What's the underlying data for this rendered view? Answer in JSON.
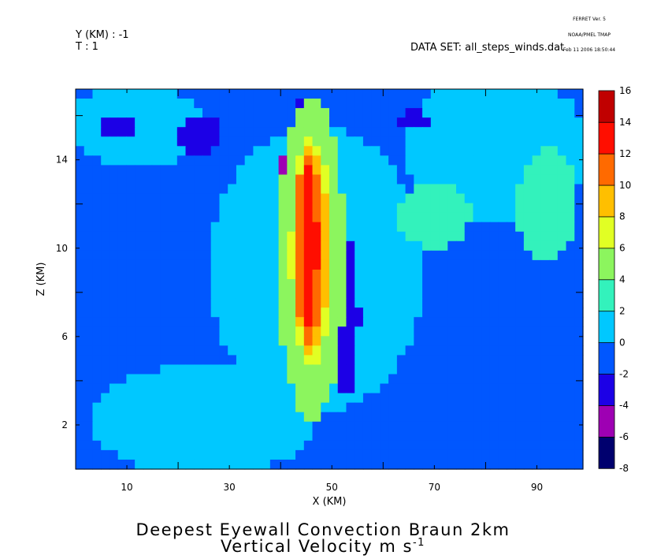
{
  "header": {
    "y_slice": "Y (KM) : -1",
    "t_slice": "T : 1",
    "dataset": "DATA SET: all_steps_winds.dat",
    "stamp": [
      "FERRET Ver. 5",
      "NOAA/PMEL TMAP",
      "Feb 11 2006 18:50:44"
    ]
  },
  "chart_data": {
    "type": "heatmap",
    "title": "Deepest Eyewall Convection Braun 2km",
    "subtitle_base": "Vertical Velocity m s",
    "subtitle_exp": "-1",
    "xlabel": "X (KM)",
    "ylabel": "Z (KM)",
    "xlim": [
      0,
      99
    ],
    "ylim": [
      0,
      17.2
    ],
    "x_ticks": [
      10,
      30,
      50,
      70,
      90
    ],
    "y_ticks": [
      2,
      6,
      10,
      14
    ],
    "colorbar": {
      "levels": [
        -8,
        -6,
        -4,
        -2,
        0,
        2,
        4,
        6,
        8,
        10,
        12,
        14,
        16
      ],
      "colors": [
        "#00006e",
        "#9e00b3",
        "#1c00e6",
        "#0057ff",
        "#00c8ff",
        "#33f2bc",
        "#8cf55e",
        "#e1ff24",
        "#ffbf00",
        "#ff6a00",
        "#ff0e00",
        "#c00000"
      ]
    },
    "background_value": -1,
    "features": [
      {
        "type": "ellipse",
        "x": 47,
        "z": 9.0,
        "rx": 21,
        "rz": 6.5,
        "value": 1
      },
      {
        "type": "ellipse",
        "x": 82,
        "z": 14.5,
        "rx": 18,
        "rz": 3.5,
        "value": 1
      },
      {
        "type": "ellipse",
        "x": 25,
        "z": 2.2,
        "rx": 22,
        "rz": 2.5,
        "value": 1
      },
      {
        "type": "ellipse",
        "x": 12,
        "z": 15.5,
        "rx": 14,
        "rz": 1.8,
        "value": 1
      },
      {
        "type": "ellipse",
        "x": 92,
        "z": 12.0,
        "rx": 6,
        "rz": 2.5,
        "value": 3
      },
      {
        "type": "ellipse",
        "x": 70,
        "z": 11.5,
        "rx": 7,
        "rz": 1.5,
        "value": 3
      },
      {
        "type": "ellipse",
        "x": 44.5,
        "z": 11.5,
        "rx": 2.5,
        "rz": 5.5,
        "value": -4
      },
      {
        "type": "ellipse",
        "x": 41,
        "z": 13.0,
        "rx": 1.5,
        "rz": 1.1,
        "value": -5
      },
      {
        "type": "ellipse",
        "x": 52.5,
        "z": 7.0,
        "rx": 2.8,
        "rz": 3.8,
        "value": -3
      },
      {
        "type": "ellipse",
        "x": 52.5,
        "z": 7.2,
        "rx": 1.3,
        "rz": 1.6,
        "value": -3.5
      },
      {
        "type": "ellipse",
        "x": 8,
        "z": 15.5,
        "rx": 3,
        "rz": 0.6,
        "value": -3
      },
      {
        "type": "ellipse",
        "x": 24,
        "z": 15.2,
        "rx": 4,
        "rz": 0.9,
        "value": -3
      },
      {
        "type": "ellipse",
        "x": 66,
        "z": 15.8,
        "rx": 3,
        "rz": 0.4,
        "value": -3
      },
      {
        "type": "ellipse",
        "x": 95,
        "z": 6.0,
        "rx": 3,
        "rz": 4.0,
        "value": -1
      },
      {
        "type": "ellipse",
        "x": 77,
        "z": 4.0,
        "rx": 4,
        "rz": 3.5,
        "value": -1
      },
      {
        "type": "ellipse",
        "x": 46,
        "z": 9.5,
        "rx": 6.5,
        "rz": 7.3,
        "value": 4
      },
      {
        "type": "ellipse",
        "x": 46,
        "z": 9.5,
        "rx": 5.0,
        "rz": 6.0,
        "value": 5.5
      },
      {
        "type": "ellipse",
        "x": 46,
        "z": 9.7,
        "rx": 4.0,
        "rz": 5.2,
        "value": 7
      },
      {
        "type": "ellipse",
        "x": 46,
        "z": 9.9,
        "rx": 3.3,
        "rz": 4.7,
        "value": 9
      },
      {
        "type": "ellipse",
        "x": 45.5,
        "z": 10.0,
        "rx": 2.6,
        "rz": 4.3,
        "value": 11
      },
      {
        "type": "ellipse",
        "x": 45.5,
        "z": 10.0,
        "rx": 1.6,
        "rz": 3.6,
        "value": 13
      }
    ]
  }
}
